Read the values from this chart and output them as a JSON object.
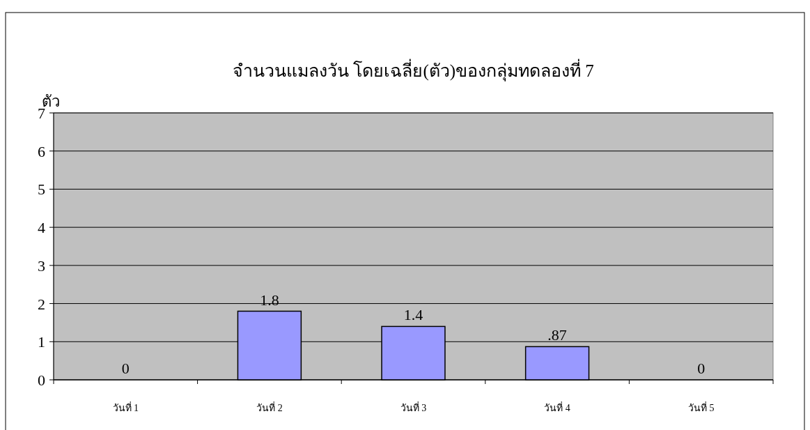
{
  "chart_data": {
    "type": "bar",
    "title": "จำนวนแมลงวัน โดยเฉลี่ย(ตัว)ของกลุ่มทดลองที่ 7",
    "ylabel": "ตัว",
    "categories": [
      "วันที่ 1",
      "วันที่ 2",
      "วันที่ 3",
      "วันที่ 4",
      "วันที่ 5"
    ],
    "values": [
      0,
      1.8,
      1.4,
      0.87,
      0
    ],
    "value_labels": [
      "0",
      "1.8",
      "1.4",
      ".87",
      "0"
    ],
    "color": "#9999ff",
    "ylim": [
      0,
      7
    ],
    "yticks": [
      0,
      1,
      2,
      3,
      4,
      5,
      6,
      7
    ],
    "grid": "y"
  }
}
